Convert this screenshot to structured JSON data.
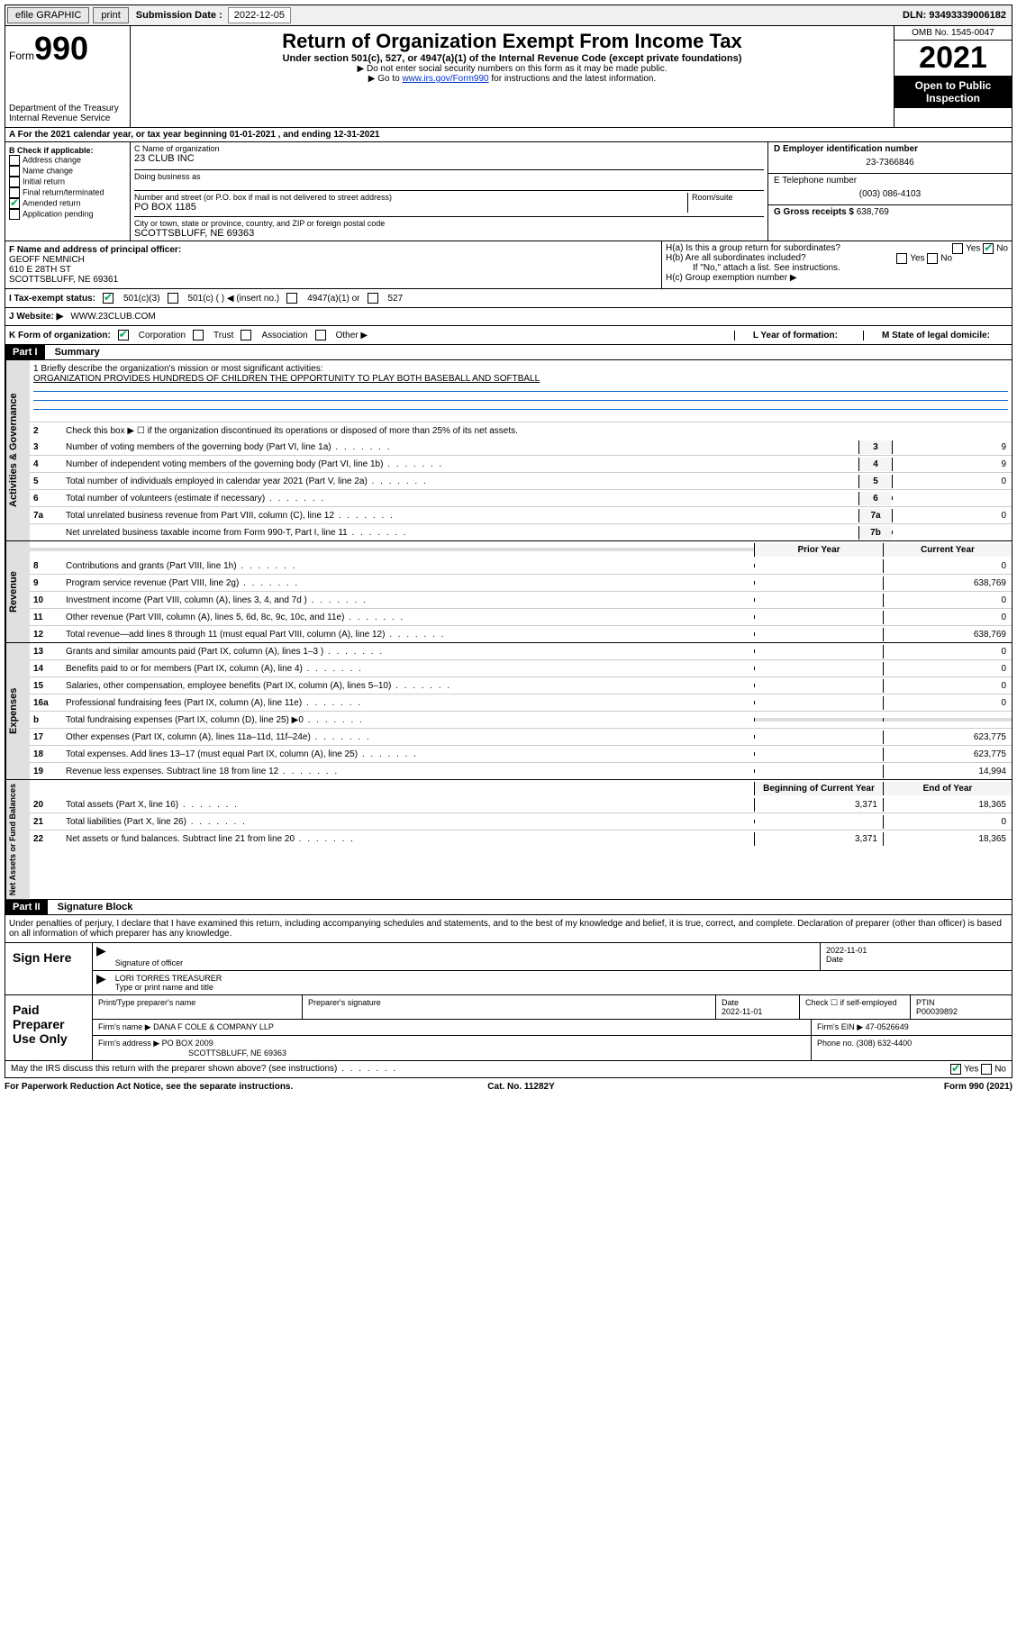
{
  "topbar": {
    "efile": "efile GRAPHIC",
    "print": "print",
    "sub_label": "Submission Date :",
    "sub_date": "2022-12-05",
    "dln_label": "DLN:",
    "dln": "93493339006182"
  },
  "header": {
    "form_label": "Form",
    "form_num": "990",
    "dept": "Department of the Treasury\nInternal Revenue Service",
    "title": "Return of Organization Exempt From Income Tax",
    "subtitle": "Under section 501(c), 527, or 4947(a)(1) of the Internal Revenue Code (except private foundations)",
    "note1": "▶ Do not enter social security numbers on this form as it may be made public.",
    "note2_pre": "▶ Go to ",
    "note2_link": "www.irs.gov/Form990",
    "note2_post": " for instructions and the latest information.",
    "omb": "OMB No. 1545-0047",
    "year": "2021",
    "open": "Open to Public Inspection"
  },
  "a_row": "A For the 2021 calendar year, or tax year beginning 01-01-2021   , and ending 12-31-2021",
  "b": {
    "label": "B Check if applicable:",
    "items": [
      "Address change",
      "Name change",
      "Initial return",
      "Final return/terminated",
      "Amended return",
      "Application pending"
    ],
    "amended_checked": true
  },
  "c": {
    "name_label": "C Name of organization",
    "name": "23 CLUB INC",
    "dba_label": "Doing business as",
    "addr_label": "Number and street (or P.O. box if mail is not delivered to street address)",
    "room_label": "Room/suite",
    "addr": "PO BOX 1185",
    "city_label": "City or town, state or province, country, and ZIP or foreign postal code",
    "city": "SCOTTSBLUFF, NE  69363"
  },
  "d": {
    "ein_label": "D Employer identification number",
    "ein": "23-7366846"
  },
  "e": {
    "phone_label": "E Telephone number",
    "phone": "(003) 086-4103"
  },
  "g": {
    "label": "G Gross receipts $",
    "val": "638,769"
  },
  "f": {
    "label": "F  Name and address of principal officer:",
    "name": "GEOFF NEMNICH",
    "addr1": "610 E 28TH ST",
    "addr2": "SCOTTSBLUFF, NE  69361"
  },
  "h": {
    "a": "H(a)  Is this a group return for subordinates?",
    "b": "H(b)  Are all subordinates included?",
    "b_note": "If \"No,\" attach a list. See instructions.",
    "c": "H(c)  Group exemption number ▶",
    "yes": "Yes",
    "no": "No"
  },
  "i": {
    "label": "I  Tax-exempt status:",
    "opts": [
      "501(c)(3)",
      "501(c) (   ) ◀ (insert no.)",
      "4947(a)(1) or",
      "527"
    ]
  },
  "j": {
    "label": "J  Website: ▶",
    "val": "WWW.23CLUB.COM"
  },
  "k": {
    "label": "K Form of organization:",
    "opts": [
      "Corporation",
      "Trust",
      "Association",
      "Other ▶"
    ],
    "l_label": "L Year of formation:",
    "m_label": "M State of legal domicile:"
  },
  "part1": {
    "header": "Part I",
    "title": "Summary",
    "mission_label": "1   Briefly describe the organization's mission or most significant activities:",
    "mission": "ORGANIZATION PROVIDES HUNDREDS OF CHILDREN THE OPPORTUNITY TO PLAY BOTH BASEBALL AND SOFTBALL",
    "line2": "Check this box ▶ ☐  if the organization discontinued its operations or disposed of more than 25% of its net assets.",
    "gov_lines": [
      {
        "n": "3",
        "t": "Number of voting members of the governing body (Part VI, line 1a)",
        "box": "3",
        "v": "9"
      },
      {
        "n": "4",
        "t": "Number of independent voting members of the governing body (Part VI, line 1b)",
        "box": "4",
        "v": "9"
      },
      {
        "n": "5",
        "t": "Total number of individuals employed in calendar year 2021 (Part V, line 2a)",
        "box": "5",
        "v": "0"
      },
      {
        "n": "6",
        "t": "Total number of volunteers (estimate if necessary)",
        "box": "6",
        "v": ""
      },
      {
        "n": "7a",
        "t": "Total unrelated business revenue from Part VIII, column (C), line 12",
        "box": "7a",
        "v": "0"
      },
      {
        "n": "",
        "t": "Net unrelated business taxable income from Form 990-T, Part I, line 11",
        "box": "7b",
        "v": ""
      }
    ],
    "prior_label": "Prior Year",
    "current_label": "Current Year",
    "rev_lines": [
      {
        "n": "8",
        "t": "Contributions and grants (Part VIII, line 1h)",
        "p": "",
        "c": "0"
      },
      {
        "n": "9",
        "t": "Program service revenue (Part VIII, line 2g)",
        "p": "",
        "c": "638,769"
      },
      {
        "n": "10",
        "t": "Investment income (Part VIII, column (A), lines 3, 4, and 7d )",
        "p": "",
        "c": "0"
      },
      {
        "n": "11",
        "t": "Other revenue (Part VIII, column (A), lines 5, 6d, 8c, 9c, 10c, and 11e)",
        "p": "",
        "c": "0"
      },
      {
        "n": "12",
        "t": "Total revenue—add lines 8 through 11 (must equal Part VIII, column (A), line 12)",
        "p": "",
        "c": "638,769"
      }
    ],
    "exp_lines": [
      {
        "n": "13",
        "t": "Grants and similar amounts paid (Part IX, column (A), lines 1–3 )",
        "p": "",
        "c": "0"
      },
      {
        "n": "14",
        "t": "Benefits paid to or for members (Part IX, column (A), line 4)",
        "p": "",
        "c": "0"
      },
      {
        "n": "15",
        "t": "Salaries, other compensation, employee benefits (Part IX, column (A), lines 5–10)",
        "p": "",
        "c": "0"
      },
      {
        "n": "16a",
        "t": "Professional fundraising fees (Part IX, column (A), line 11e)",
        "p": "",
        "c": "0"
      },
      {
        "n": "b",
        "t": "Total fundraising expenses (Part IX, column (D), line 25) ▶0",
        "p": "—",
        "c": "—"
      },
      {
        "n": "17",
        "t": "Other expenses (Part IX, column (A), lines 11a–11d, 11f–24e)",
        "p": "",
        "c": "623,775"
      },
      {
        "n": "18",
        "t": "Total expenses. Add lines 13–17 (must equal Part IX, column (A), line 25)",
        "p": "",
        "c": "623,775"
      },
      {
        "n": "19",
        "t": "Revenue less expenses. Subtract line 18 from line 12",
        "p": "",
        "c": "14,994"
      }
    ],
    "beg_label": "Beginning of Current Year",
    "end_label": "End of Year",
    "net_lines": [
      {
        "n": "20",
        "t": "Total assets (Part X, line 16)",
        "p": "3,371",
        "c": "18,365"
      },
      {
        "n": "21",
        "t": "Total liabilities (Part X, line 26)",
        "p": "",
        "c": "0"
      },
      {
        "n": "22",
        "t": "Net assets or fund balances. Subtract line 21 from line 20",
        "p": "3,371",
        "c": "18,365"
      }
    ],
    "tabs": {
      "gov": "Activities & Governance",
      "rev": "Revenue",
      "exp": "Expenses",
      "net": "Net Assets or Fund Balances"
    }
  },
  "part2": {
    "header": "Part II",
    "title": "Signature Block",
    "declare": "Under penalties of perjury, I declare that I have examined this return, including accompanying schedules and statements, and to the best of my knowledge and belief, it is true, correct, and complete. Declaration of preparer (other than officer) is based on all information of which preparer has any knowledge.",
    "sign_here": "Sign Here",
    "sig_officer": "Signature of officer",
    "date": "Date",
    "sig_date": "2022-11-01",
    "officer_name": "LORI TORRES  TREASURER",
    "type_name": "Type or print name and title",
    "paid": "Paid Preparer Use Only",
    "prep_name_label": "Print/Type preparer's name",
    "prep_sig_label": "Preparer's signature",
    "prep_date_label": "Date",
    "prep_date": "2022-11-01",
    "check_self": "Check ☐ if self-employed",
    "ptin_label": "PTIN",
    "ptin": "P00039892",
    "firm_name_label": "Firm's name    ▶",
    "firm_name": "DANA F COLE & COMPANY LLP",
    "firm_ein_label": "Firm's EIN ▶",
    "firm_ein": "47-0526649",
    "firm_addr_label": "Firm's address ▶",
    "firm_addr1": "PO BOX 2009",
    "firm_addr2": "SCOTTSBLUFF, NE  69363",
    "firm_phone_label": "Phone no.",
    "firm_phone": "(308) 632-4400",
    "discuss": "May the IRS discuss this return with the preparer shown above? (see instructions)"
  },
  "footer": {
    "left": "For Paperwork Reduction Act Notice, see the separate instructions.",
    "mid": "Cat. No. 11282Y",
    "right": "Form 990 (2021)"
  }
}
